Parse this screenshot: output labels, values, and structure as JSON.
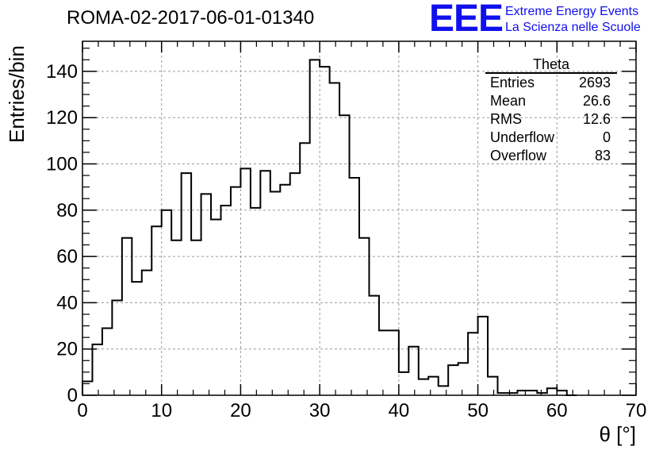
{
  "title": "ROMA-02-2017-06-01-01340",
  "logo": {
    "mark": "EEE",
    "line1": "Extreme Energy Events",
    "line2": "La Scienza nelle Scuole",
    "color": "#1010ee"
  },
  "stats_box": {
    "title": "Theta",
    "rows": [
      {
        "label": "Entries",
        "value": "2693"
      },
      {
        "label": "Mean",
        "value": "26.6"
      },
      {
        "label": "RMS",
        "value": "12.6"
      },
      {
        "label": "Underflow",
        "value": "0"
      },
      {
        "label": "Overflow",
        "value": "83"
      }
    ]
  },
  "chart_data": {
    "type": "bar",
    "title": "ROMA-02-2017-06-01-01340",
    "xlabel": "θ [°]",
    "ylabel": "Entries/bin",
    "xlim": [
      0,
      70
    ],
    "ylim": [
      0,
      153
    ],
    "xticks": [
      0,
      10,
      20,
      30,
      40,
      50,
      60,
      70
    ],
    "yticks": [
      0,
      20,
      40,
      60,
      80,
      100,
      120,
      140
    ],
    "grid": true,
    "bin_width": 1.25,
    "bin_edges_start": 0,
    "values": [
      6,
      22,
      29,
      41,
      68,
      49,
      54,
      73,
      80,
      67,
      96,
      67,
      87,
      76,
      82,
      90,
      98,
      81,
      97,
      88,
      91,
      96,
      109,
      145,
      142,
      135,
      121,
      94,
      68,
      43,
      28,
      28,
      10,
      21,
      7,
      8,
      4,
      13,
      14,
      27,
      34,
      8,
      1,
      1,
      2,
      2,
      1,
      3,
      2,
      0
    ]
  }
}
